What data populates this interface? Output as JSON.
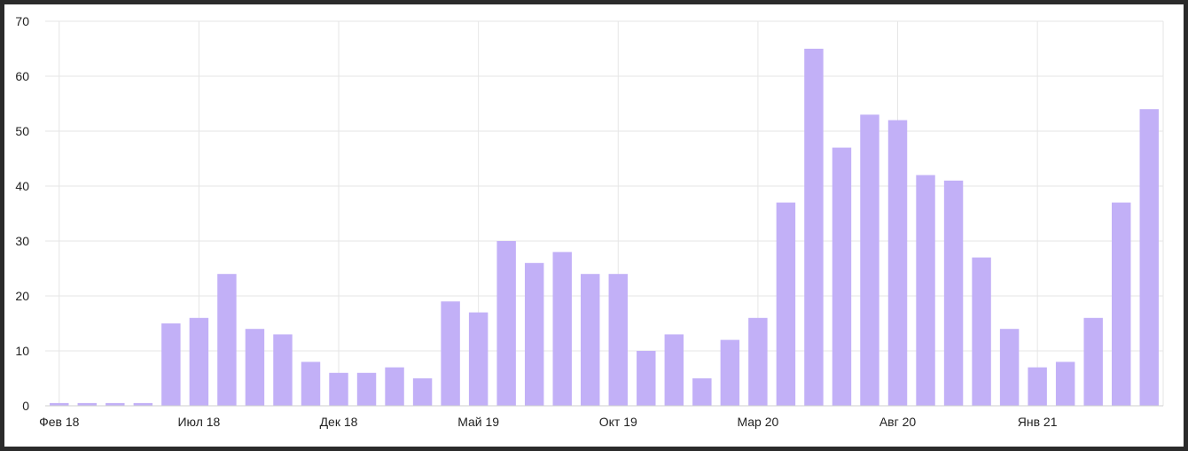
{
  "chart_data": {
    "type": "bar",
    "x": [
      "2018-02",
      "2018-03",
      "2018-04",
      "2018-05",
      "2018-06",
      "2018-07",
      "2018-08",
      "2018-09",
      "2018-10",
      "2018-11",
      "2018-12",
      "2019-01",
      "2019-02",
      "2019-03",
      "2019-04",
      "2019-05",
      "2019-06",
      "2019-07",
      "2019-08",
      "2019-09",
      "2019-10",
      "2019-11",
      "2019-12",
      "2020-01",
      "2020-02",
      "2020-03",
      "2020-04",
      "2020-05",
      "2020-06",
      "2020-07",
      "2020-08",
      "2020-09",
      "2020-10",
      "2020-11",
      "2020-12",
      "2021-01",
      "2021-02",
      "2021-03",
      "2021-04",
      "2021-05"
    ],
    "values": [
      0.5,
      0.5,
      0.5,
      0.5,
      15,
      16,
      24,
      14,
      13,
      8,
      6,
      6,
      7,
      5,
      19,
      17,
      30,
      26,
      28,
      24,
      24,
      10,
      13,
      5,
      12,
      16,
      37,
      65,
      47,
      53,
      52,
      42,
      41,
      27,
      14,
      7,
      8,
      16,
      37,
      54
    ],
    "title": "",
    "xlabel": "",
    "ylabel": "",
    "ylim": [
      0,
      70
    ],
    "yticks": [
      "0",
      "10",
      "20",
      "30",
      "40",
      "50",
      "60",
      "70"
    ],
    "xticks": [
      {
        "x": "2018-02",
        "label": "Фев 18"
      },
      {
        "x": "2018-07",
        "label": "Июл 18"
      },
      {
        "x": "2018-12",
        "label": "Дек 18"
      },
      {
        "x": "2019-05",
        "label": "Май 19"
      },
      {
        "x": "2019-10",
        "label": "Окт 19"
      },
      {
        "x": "2020-03",
        "label": "Мар 20"
      },
      {
        "x": "2020-08",
        "label": "Авг 20"
      },
      {
        "x": "2021-01",
        "label": "Янв 21"
      }
    ],
    "grid": true,
    "legend": "none",
    "bar_color": "#c2b0f7"
  }
}
